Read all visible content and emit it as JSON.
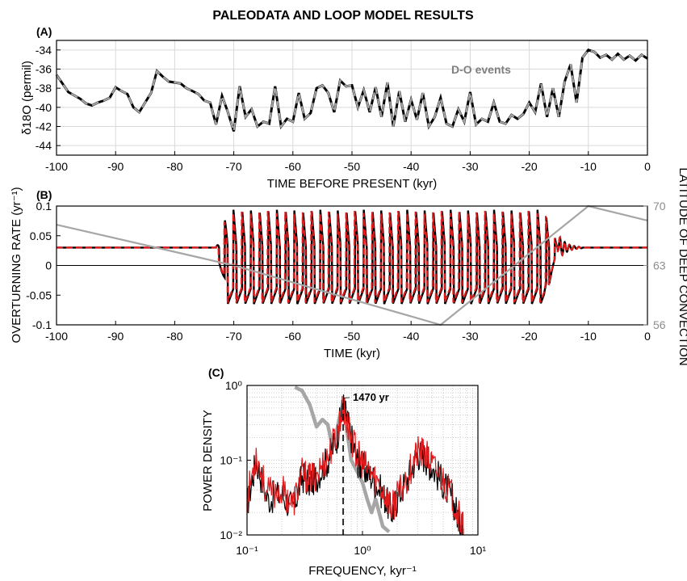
{
  "title": "PALEODATA AND LOOP MODEL RESULTS",
  "chart_data": [
    {
      "panel": "(A)",
      "type": "line",
      "xlabel": "TIME BEFORE PRESENT (kyr)",
      "ylabel": "δ18O (permil)",
      "xlim": [
        -100,
        0
      ],
      "ylim": [
        -45,
        -33
      ],
      "xticks": [
        "-100",
        "-90",
        "-80",
        "-70",
        "-60",
        "-50",
        "-40",
        "-30",
        "-20",
        "-10",
        "0"
      ],
      "yticks": [
        "-44",
        "-42",
        "-40",
        "-38",
        "-36",
        "-34"
      ],
      "grid": true,
      "annotation": {
        "text": "D-O events",
        "x": -38,
        "y": -36.4
      },
      "series": [
        {
          "color": "#000000",
          "style": "solid"
        },
        {
          "color": "#a6a6a6",
          "style": "dashed"
        }
      ],
      "x": [
        -100,
        -98,
        -96,
        -95,
        -94,
        -93,
        -92,
        -91,
        -90,
        -89,
        -88,
        -87,
        -86,
        -85,
        -84,
        -83,
        -82,
        -81,
        -80,
        -79,
        -78,
        -77,
        -76,
        -75,
        -74,
        -73,
        -72,
        -71,
        -70,
        -69,
        -68,
        -67,
        -66,
        -65,
        -64,
        -63,
        -62,
        -61,
        -60,
        -59,
        -58,
        -57,
        -56,
        -55,
        -54,
        -53,
        -52,
        -51,
        -50,
        -49,
        -48,
        -47,
        -46,
        -45,
        -44,
        -43,
        -42,
        -41,
        -40,
        -39,
        -38,
        -37,
        -36,
        -35,
        -34,
        -33,
        -32,
        -31,
        -30,
        -29,
        -28,
        -27,
        -26,
        -25,
        -24,
        -23,
        -22,
        -21,
        -20,
        -19,
        -18,
        -17,
        -16,
        -15,
        -14,
        -13,
        -12,
        -11,
        -10,
        -9,
        -8,
        -7,
        -6,
        -5,
        -4,
        -3,
        -2,
        -1,
        0
      ],
      "values": [
        -36.6,
        -38.4,
        -39.1,
        -39.6,
        -39.8,
        -39.5,
        -39.3,
        -39.0,
        -37.9,
        -38.3,
        -38.6,
        -40.0,
        -40.5,
        -39.5,
        -38.5,
        -36.2,
        -36.8,
        -37.3,
        -37.4,
        -37.5,
        -38.0,
        -38.3,
        -38.6,
        -39.3,
        -39.5,
        -41.8,
        -38.8,
        -40.5,
        -42.5,
        -37.8,
        -41.0,
        -40.2,
        -42.0,
        -41.5,
        -41.7,
        -37.8,
        -42.0,
        -41.2,
        -41.5,
        -38.5,
        -41.2,
        -40.6,
        -38.0,
        -37.7,
        -38.5,
        -40.5,
        -37.2,
        -37.8,
        -37.7,
        -40.0,
        -38.2,
        -40.5,
        -37.9,
        -41.0,
        -37.4,
        -42.0,
        -38.3,
        -41.5,
        -39.2,
        -41.3,
        -38.5,
        -42.0,
        -41.0,
        -39.0,
        -41.7,
        -42.0,
        -40.2,
        -41.5,
        -38.4,
        -41.8,
        -41.2,
        -41.5,
        -39.5,
        -41.5,
        -41.7,
        -40.8,
        -41.2,
        -40.7,
        -39.5,
        -40.5,
        -37.5,
        -41.0,
        -38.0,
        -41.0,
        -37.3,
        -35.5,
        -39.5,
        -34.8,
        -34.0,
        -34.2,
        -34.8,
        -34.5,
        -35.0,
        -34.4,
        -35.0,
        -34.6,
        -35.1,
        -34.5,
        -34.9
      ]
    },
    {
      "panel": "(B)",
      "type": "line",
      "xlabel": "TIME (kyr)",
      "ylabel": "OVERTURNING  RATE (yr⁻¹)",
      "ylabel_right": "LATITUDE  OF  DEEP  CONVECTION",
      "xlim": [
        -100,
        0
      ],
      "ylim": [
        -0.1,
        0.1
      ],
      "ylim_right": [
        56,
        70
      ],
      "xticks": [
        "-100",
        "-90",
        "-80",
        "-70",
        "-60",
        "-50",
        "-40",
        "-30",
        "-20",
        "-10",
        "0"
      ],
      "yticks": [
        "-0.1",
        "-0.05",
        "0",
        "0.05",
        "0.1"
      ],
      "yticks_right": [
        "56",
        "63",
        "70"
      ],
      "series": [
        {
          "name": "",
          "color": "#000000",
          "style": "solid",
          "baseline": 0.03,
          "oscillation_interval": [
            -73,
            -15
          ],
          "amplitude": 0.065,
          "period_kyr": 1.47
        },
        {
          "name": "",
          "color": "#e31a1c",
          "style": "dashed",
          "baseline": 0.03,
          "oscillation_interval": [
            -73,
            -15
          ],
          "amplitude": 0.063,
          "period_kyr": 1.47
        },
        {
          "name": "",
          "color": "#a6a6a6",
          "style": "solid",
          "axis": "right",
          "x": [
            -100,
            -70,
            -35,
            -10,
            0
          ],
          "values": [
            67.8,
            63.0,
            56.0,
            70.0,
            68.3
          ]
        }
      ]
    },
    {
      "panel": "(C)",
      "type": "line",
      "xlabel": "FREQUENCY, kyr⁻¹",
      "ylabel": "POWER  DENSITY",
      "xscale": "log",
      "yscale": "log",
      "xlim": [
        0.1,
        10
      ],
      "ylim": [
        0.01,
        1
      ],
      "xticks": [
        "10⁻¹",
        "10⁰",
        "10¹"
      ],
      "yticks": [
        "10⁻²",
        "10⁻¹",
        "10⁰"
      ],
      "grid": true,
      "annotation": {
        "text": "1470 yr",
        "x": 0.68,
        "y": 0.68
      },
      "vline": 0.68,
      "series": [
        {
          "name": "",
          "color": "#a6a6a6",
          "x": [
            0.26,
            0.3,
            0.35,
            0.4,
            0.45,
            0.5,
            0.55,
            0.6,
            0.65,
            0.68,
            0.72,
            0.8,
            0.9,
            1.0,
            1.1,
            1.2,
            1.3,
            1.5,
            1.7
          ],
          "values": [
            0.95,
            0.85,
            0.55,
            0.28,
            0.35,
            0.3,
            0.15,
            0.25,
            0.45,
            0.55,
            0.3,
            0.1,
            0.07,
            0.05,
            0.03,
            0.02,
            0.03,
            0.013,
            0.011
          ]
        },
        {
          "name": "",
          "color": "#000000",
          "x": [
            0.1,
            0.12,
            0.15,
            0.2,
            0.25,
            0.3,
            0.35,
            0.4,
            0.5,
            0.6,
            0.68,
            0.75,
            0.9,
            1.0,
            1.2,
            1.5,
            1.8,
            2.0,
            2.5,
            3.0,
            3.5,
            4.0,
            5.0,
            6.0,
            7.0,
            7.5
          ],
          "values": [
            0.025,
            0.1,
            0.03,
            0.035,
            0.022,
            0.06,
            0.05,
            0.06,
            0.1,
            0.2,
            0.55,
            0.3,
            0.1,
            0.08,
            0.06,
            0.035,
            0.02,
            0.03,
            0.06,
            0.12,
            0.11,
            0.08,
            0.05,
            0.03,
            0.015,
            0.011
          ]
        },
        {
          "name": "",
          "color": "#e31a1c",
          "x": [
            0.1,
            0.12,
            0.15,
            0.2,
            0.25,
            0.3,
            0.35,
            0.4,
            0.5,
            0.6,
            0.68,
            0.75,
            0.9,
            1.0,
            1.2,
            1.5,
            1.8,
            2.0,
            2.5,
            3.0,
            3.5,
            4.0,
            5.0,
            6.0,
            7.0,
            7.5
          ],
          "values": [
            0.03,
            0.12,
            0.035,
            0.04,
            0.025,
            0.065,
            0.055,
            0.065,
            0.11,
            0.22,
            0.5,
            0.28,
            0.12,
            0.09,
            0.065,
            0.04,
            0.022,
            0.032,
            0.065,
            0.13,
            0.12,
            0.085,
            0.055,
            0.032,
            0.016,
            0.012
          ]
        }
      ]
    }
  ]
}
